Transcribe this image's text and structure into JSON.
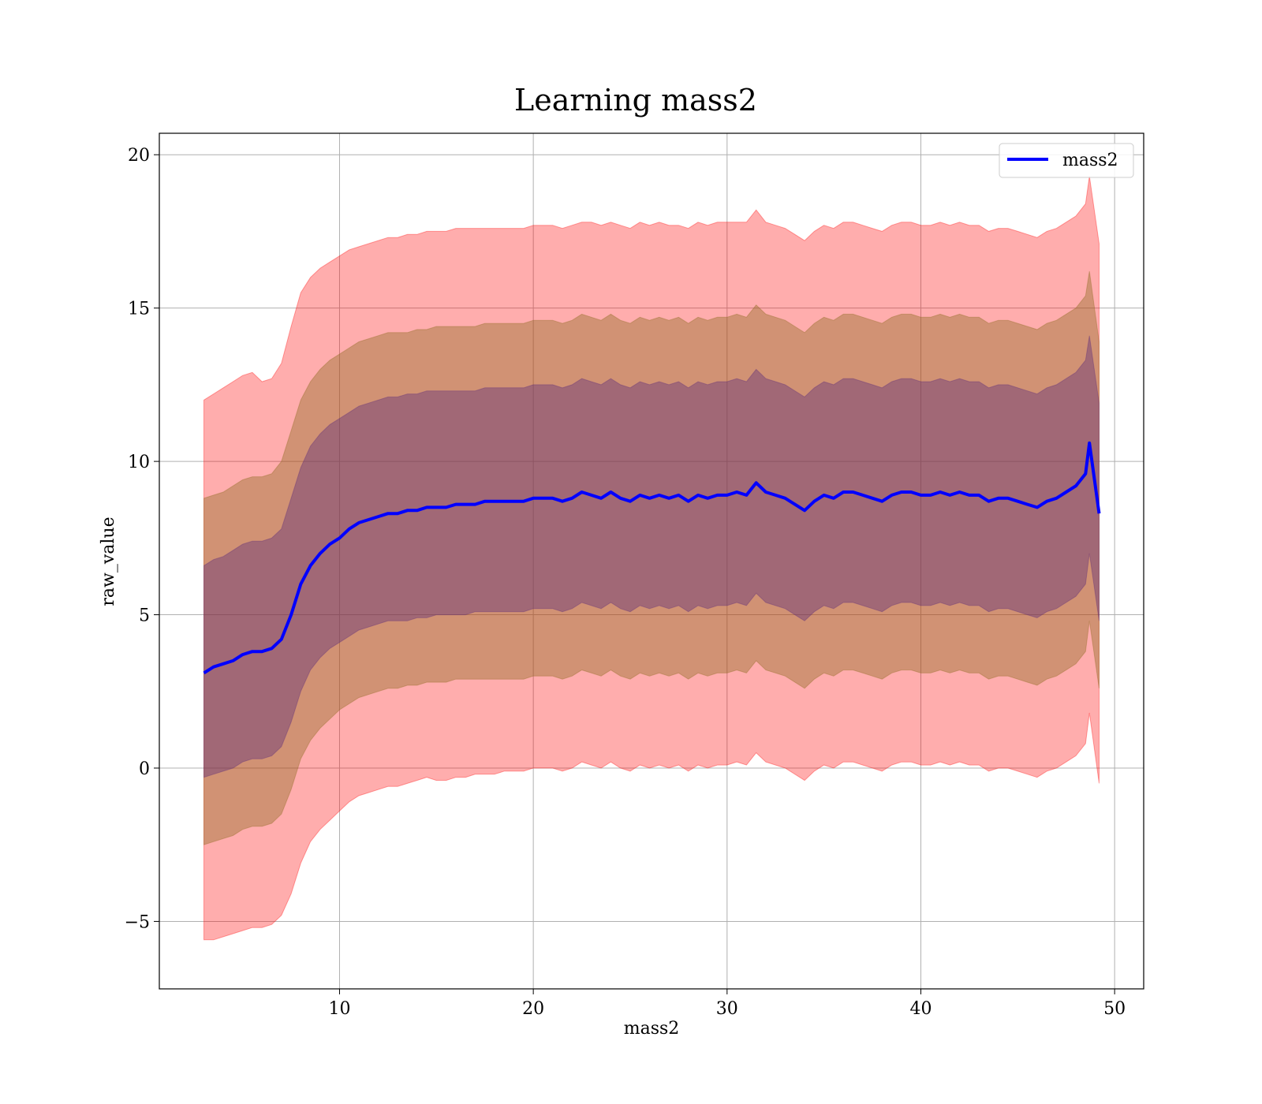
{
  "chart_data": {
    "type": "line",
    "title": "Learning mass2",
    "xlabel": "mass2",
    "ylabel": "raw_value",
    "xlim": [
      0.7,
      51.5
    ],
    "ylim": [
      -7.2,
      20.7
    ],
    "xticks": [
      10,
      20,
      30,
      40,
      50
    ],
    "xtick_labels": [
      "10",
      "20",
      "30",
      "40",
      "50"
    ],
    "yticks": [
      -5,
      0,
      5,
      10,
      15,
      20
    ],
    "ytick_labels": [
      "−5",
      "0",
      "5",
      "10",
      "15",
      "20"
    ],
    "grid": true,
    "legend_position": "top-right",
    "series": [
      {
        "name": "mass2",
        "color": "#0000ff",
        "x": [
          3.0,
          3.5,
          4.0,
          4.5,
          5.0,
          5.5,
          6.0,
          6.5,
          7.0,
          7.5,
          8.0,
          8.5,
          9.0,
          9.5,
          10.0,
          10.5,
          11.0,
          11.5,
          12.0,
          12.5,
          13.0,
          13.5,
          14.0,
          14.5,
          15.0,
          15.5,
          16.0,
          16.5,
          17.0,
          17.5,
          18.0,
          18.5,
          19.0,
          19.5,
          20.0,
          20.5,
          21.0,
          21.5,
          22.0,
          22.5,
          23.0,
          23.5,
          24.0,
          24.5,
          25.0,
          25.5,
          26.0,
          26.5,
          27.0,
          27.5,
          28.0,
          28.5,
          29.0,
          29.5,
          30.0,
          30.5,
          31.0,
          31.5,
          32.0,
          32.5,
          33.0,
          33.5,
          34.0,
          34.5,
          35.0,
          35.5,
          36.0,
          36.5,
          37.0,
          37.5,
          38.0,
          38.5,
          39.0,
          39.5,
          40.0,
          40.5,
          41.0,
          41.5,
          42.0,
          42.5,
          43.0,
          43.5,
          44.0,
          44.5,
          45.0,
          45.5,
          46.0,
          46.5,
          47.0,
          47.5,
          48.0,
          48.5,
          48.7,
          49.2
        ],
        "y": [
          3.1,
          3.3,
          3.4,
          3.5,
          3.7,
          3.8,
          3.8,
          3.9,
          4.2,
          5.0,
          6.0,
          6.6,
          7.0,
          7.3,
          7.5,
          7.8,
          8.0,
          8.1,
          8.2,
          8.3,
          8.3,
          8.4,
          8.4,
          8.5,
          8.5,
          8.5,
          8.6,
          8.6,
          8.6,
          8.7,
          8.7,
          8.7,
          8.7,
          8.7,
          8.8,
          8.8,
          8.8,
          8.7,
          8.8,
          9.0,
          8.9,
          8.8,
          9.0,
          8.8,
          8.7,
          8.9,
          8.8,
          8.9,
          8.8,
          8.9,
          8.7,
          8.9,
          8.8,
          8.9,
          8.9,
          9.0,
          8.9,
          9.3,
          9.0,
          8.9,
          8.8,
          8.6,
          8.4,
          8.7,
          8.9,
          8.8,
          9.0,
          9.0,
          8.9,
          8.8,
          8.7,
          8.9,
          9.0,
          9.0,
          8.9,
          8.9,
          9.0,
          8.9,
          9.0,
          8.9,
          8.9,
          8.7,
          8.8,
          8.8,
          8.7,
          8.6,
          8.5,
          8.7,
          8.8,
          9.0,
          9.2,
          9.6,
          10.6,
          8.3
        ]
      }
    ],
    "bands": [
      {
        "color": "#ff0000",
        "opacity": 0.32,
        "upper": [
          12.0,
          12.2,
          12.4,
          12.6,
          12.8,
          12.9,
          12.6,
          12.7,
          13.2,
          14.4,
          15.5,
          16.0,
          16.3,
          16.5,
          16.7,
          16.9,
          17.0,
          17.1,
          17.2,
          17.3,
          17.3,
          17.4,
          17.4,
          17.5,
          17.5,
          17.5,
          17.6,
          17.6,
          17.6,
          17.6,
          17.6,
          17.6,
          17.6,
          17.6,
          17.7,
          17.7,
          17.7,
          17.6,
          17.7,
          17.8,
          17.8,
          17.7,
          17.8,
          17.7,
          17.6,
          17.8,
          17.7,
          17.8,
          17.7,
          17.7,
          17.6,
          17.8,
          17.7,
          17.8,
          17.8,
          17.8,
          17.8,
          18.2,
          17.8,
          17.7,
          17.6,
          17.4,
          17.2,
          17.5,
          17.7,
          17.6,
          17.8,
          17.8,
          17.7,
          17.6,
          17.5,
          17.7,
          17.8,
          17.8,
          17.7,
          17.7,
          17.8,
          17.7,
          17.8,
          17.7,
          17.7,
          17.5,
          17.6,
          17.6,
          17.5,
          17.4,
          17.3,
          17.5,
          17.6,
          17.8,
          18.0,
          18.4,
          19.3,
          17.1
        ],
        "lower": [
          -5.6,
          -5.6,
          -5.5,
          -5.4,
          -5.3,
          -5.2,
          -5.2,
          -5.1,
          -4.8,
          -4.1,
          -3.1,
          -2.4,
          -2.0,
          -1.7,
          -1.4,
          -1.1,
          -0.9,
          -0.8,
          -0.7,
          -0.6,
          -0.6,
          -0.5,
          -0.4,
          -0.3,
          -0.4,
          -0.4,
          -0.3,
          -0.3,
          -0.2,
          -0.2,
          -0.2,
          -0.1,
          -0.1,
          -0.1,
          0.0,
          0.0,
          0.0,
          -0.1,
          0.0,
          0.2,
          0.1,
          0.0,
          0.2,
          0.0,
          -0.1,
          0.1,
          0.0,
          0.1,
          0.0,
          0.1,
          -0.1,
          0.1,
          0.0,
          0.1,
          0.1,
          0.2,
          0.1,
          0.5,
          0.2,
          0.1,
          0.0,
          -0.2,
          -0.4,
          -0.1,
          0.1,
          0.0,
          0.2,
          0.2,
          0.1,
          0.0,
          -0.1,
          0.1,
          0.2,
          0.2,
          0.1,
          0.1,
          0.2,
          0.1,
          0.2,
          0.1,
          0.1,
          -0.1,
          0.0,
          0.0,
          -0.1,
          -0.2,
          -0.3,
          -0.1,
          0.0,
          0.2,
          0.4,
          0.8,
          1.8,
          -0.5
        ]
      },
      {
        "color": "#8b6a1f",
        "opacity": 0.4,
        "upper": [
          8.8,
          8.9,
          9.0,
          9.2,
          9.4,
          9.5,
          9.5,
          9.6,
          10.0,
          11.0,
          12.0,
          12.6,
          13.0,
          13.3,
          13.5,
          13.7,
          13.9,
          14.0,
          14.1,
          14.2,
          14.2,
          14.2,
          14.3,
          14.3,
          14.4,
          14.4,
          14.4,
          14.4,
          14.4,
          14.5,
          14.5,
          14.5,
          14.5,
          14.5,
          14.6,
          14.6,
          14.6,
          14.5,
          14.6,
          14.8,
          14.7,
          14.6,
          14.8,
          14.6,
          14.5,
          14.7,
          14.6,
          14.7,
          14.6,
          14.7,
          14.5,
          14.7,
          14.6,
          14.7,
          14.7,
          14.8,
          14.7,
          15.1,
          14.8,
          14.7,
          14.6,
          14.4,
          14.2,
          14.5,
          14.7,
          14.6,
          14.8,
          14.8,
          14.7,
          14.6,
          14.5,
          14.7,
          14.8,
          14.8,
          14.7,
          14.7,
          14.8,
          14.7,
          14.8,
          14.7,
          14.7,
          14.5,
          14.6,
          14.6,
          14.5,
          14.4,
          14.3,
          14.5,
          14.6,
          14.8,
          15.0,
          15.4,
          16.2,
          13.9
        ],
        "lower": [
          -2.5,
          -2.4,
          -2.3,
          -2.2,
          -2.0,
          -1.9,
          -1.9,
          -1.8,
          -1.5,
          -0.7,
          0.3,
          0.9,
          1.3,
          1.6,
          1.9,
          2.1,
          2.3,
          2.4,
          2.5,
          2.6,
          2.6,
          2.7,
          2.7,
          2.8,
          2.8,
          2.8,
          2.9,
          2.9,
          2.9,
          2.9,
          2.9,
          2.9,
          2.9,
          2.9,
          3.0,
          3.0,
          3.0,
          2.9,
          3.0,
          3.2,
          3.1,
          3.0,
          3.2,
          3.0,
          2.9,
          3.1,
          3.0,
          3.1,
          3.0,
          3.1,
          2.9,
          3.1,
          3.0,
          3.1,
          3.1,
          3.2,
          3.1,
          3.5,
          3.2,
          3.1,
          3.0,
          2.8,
          2.6,
          2.9,
          3.1,
          3.0,
          3.2,
          3.2,
          3.1,
          3.0,
          2.9,
          3.1,
          3.2,
          3.2,
          3.1,
          3.1,
          3.2,
          3.1,
          3.2,
          3.1,
          3.1,
          2.9,
          3.0,
          3.0,
          2.9,
          2.8,
          2.7,
          2.9,
          3.0,
          3.2,
          3.4,
          3.8,
          4.8,
          2.6
        ]
      },
      {
        "color": "#5b2a7a",
        "opacity": 0.4,
        "upper": [
          6.6,
          6.8,
          6.9,
          7.1,
          7.3,
          7.4,
          7.4,
          7.5,
          7.8,
          8.8,
          9.8,
          10.5,
          10.9,
          11.2,
          11.4,
          11.6,
          11.8,
          11.9,
          12.0,
          12.1,
          12.1,
          12.2,
          12.2,
          12.3,
          12.3,
          12.3,
          12.3,
          12.3,
          12.3,
          12.4,
          12.4,
          12.4,
          12.4,
          12.4,
          12.5,
          12.5,
          12.5,
          12.4,
          12.5,
          12.7,
          12.6,
          12.5,
          12.7,
          12.5,
          12.4,
          12.6,
          12.5,
          12.6,
          12.5,
          12.6,
          12.4,
          12.6,
          12.5,
          12.6,
          12.6,
          12.7,
          12.6,
          13.0,
          12.7,
          12.6,
          12.5,
          12.3,
          12.1,
          12.4,
          12.6,
          12.5,
          12.7,
          12.7,
          12.6,
          12.5,
          12.4,
          12.6,
          12.7,
          12.7,
          12.6,
          12.6,
          12.7,
          12.6,
          12.7,
          12.6,
          12.6,
          12.4,
          12.5,
          12.5,
          12.4,
          12.3,
          12.2,
          12.4,
          12.5,
          12.7,
          12.9,
          13.3,
          14.1,
          11.9
        ],
        "lower": [
          -0.3,
          -0.2,
          -0.1,
          0.0,
          0.2,
          0.3,
          0.3,
          0.4,
          0.7,
          1.5,
          2.5,
          3.2,
          3.6,
          3.9,
          4.1,
          4.3,
          4.5,
          4.6,
          4.7,
          4.8,
          4.8,
          4.8,
          4.9,
          4.9,
          5.0,
          5.0,
          5.0,
          5.0,
          5.1,
          5.1,
          5.1,
          5.1,
          5.1,
          5.1,
          5.2,
          5.2,
          5.2,
          5.1,
          5.2,
          5.4,
          5.3,
          5.2,
          5.4,
          5.2,
          5.1,
          5.3,
          5.2,
          5.3,
          5.2,
          5.3,
          5.1,
          5.3,
          5.2,
          5.3,
          5.3,
          5.4,
          5.3,
          5.7,
          5.4,
          5.3,
          5.2,
          5.0,
          4.8,
          5.1,
          5.3,
          5.2,
          5.4,
          5.4,
          5.3,
          5.2,
          5.1,
          5.3,
          5.4,
          5.4,
          5.3,
          5.3,
          5.4,
          5.3,
          5.4,
          5.3,
          5.3,
          5.1,
          5.2,
          5.2,
          5.1,
          5.0,
          4.9,
          5.1,
          5.2,
          5.4,
          5.6,
          6.0,
          7.0,
          4.8
        ]
      }
    ]
  }
}
